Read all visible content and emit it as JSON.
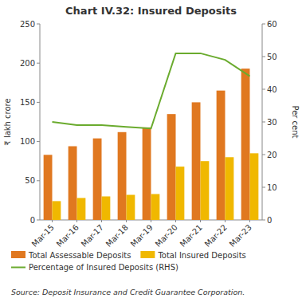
{
  "chart_data": {
    "type": "bar",
    "title": "Chart IV.32: Insured Deposits",
    "categories": [
      "Mar-15",
      "Mar-16",
      "Mar-17",
      "Mar-18",
      "Mar-19",
      "Mar-20",
      "Mar-21",
      "Mar-22",
      "Mar-23"
    ],
    "series": [
      {
        "name": "Total Assessable Deposits",
        "color": "#E07820",
        "values": [
          83,
          94,
          104,
          112,
          118,
          135,
          150,
          165,
          193
        ]
      },
      {
        "name": "Total Insured Deposits",
        "color": "#F0B800",
        "values": [
          24,
          28,
          30,
          32,
          33,
          68,
          75,
          80,
          85
        ]
      },
      {
        "name": "Percentage of Insured Deposits (RHS)",
        "color": "#6AAB2E",
        "type": "line",
        "axis": "y2",
        "values": [
          30,
          29,
          29,
          28.5,
          28,
          51,
          51,
          49,
          44
        ]
      }
    ],
    "ylabel": "₹ lakh crore",
    "y2label": "Per cent",
    "ylim": [
      0,
      250
    ],
    "yticks": [
      0,
      50,
      100,
      150,
      200,
      250
    ],
    "y2lim": [
      0,
      60
    ],
    "y2ticks": [
      0,
      10,
      20,
      30,
      40,
      50,
      60
    ],
    "grid": false,
    "legend": "bottom",
    "source": "Source: Deposit Insurance and Credit Guarantee Corporation."
  }
}
